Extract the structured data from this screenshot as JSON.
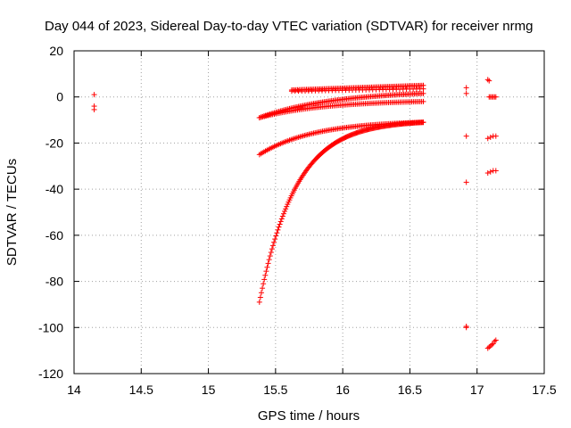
{
  "chart_data": {
    "type": "scatter",
    "title": "Day 044 of 2023, Sidereal Day-to-day VTEC variation (SDTVAR) for receiver nrmg",
    "xlabel": "GPS time / hours",
    "ylabel": "SDTVAR / TECUs",
    "xlim": [
      14,
      17.5
    ],
    "ylim": [
      -120,
      20
    ],
    "x_ticks": [
      14,
      14.5,
      15,
      15.5,
      16,
      16.5,
      17,
      17.5
    ],
    "y_ticks": [
      20,
      0,
      -20,
      -40,
      -60,
      -80,
      -100,
      -120
    ],
    "grid": true,
    "marker": "+",
    "color": "#ff0000",
    "series": [
      {
        "name": "isolated-early",
        "points": [
          [
            14.15,
            1
          ],
          [
            14.15,
            -4
          ],
          [
            14.15,
            -5.5
          ]
        ]
      },
      {
        "name": "upper-band",
        "x_start": 15.62,
        "x_end": 16.6,
        "y_start": 3,
        "y_end": 5,
        "count": 90
      },
      {
        "name": "upper-band-2",
        "x_start": 15.62,
        "x_end": 16.6,
        "y_start": 2.5,
        "y_end": 3.5,
        "count": 40
      },
      {
        "name": "track-a",
        "x_start": 15.38,
        "x_end": 16.6,
        "y_start": -9,
        "y_end": 1.5,
        "shape": 2.2,
        "count": 110
      },
      {
        "name": "track-b",
        "x_start": 15.38,
        "x_end": 16.6,
        "y_start": -9,
        "y_end": -2,
        "shape": 2.5,
        "count": 100
      },
      {
        "name": "track-c",
        "x_start": 15.38,
        "x_end": 16.6,
        "y_start": -25,
        "y_end": -11,
        "shape": 3.0,
        "count": 110
      },
      {
        "name": "track-d",
        "x_start": 15.38,
        "x_end": 16.6,
        "y_start": -89,
        "y_end": -11,
        "shape": 4.5,
        "count": 170
      },
      {
        "name": "late-scatter",
        "points": [
          [
            16.92,
            4
          ],
          [
            16.92,
            1.5
          ],
          [
            16.92,
            -17
          ],
          [
            16.92,
            -37
          ],
          [
            16.92,
            -99.5
          ],
          [
            16.92,
            -100
          ],
          [
            17.08,
            7.5
          ],
          [
            17.09,
            7
          ],
          [
            17.09,
            0
          ],
          [
            17.1,
            0
          ],
          [
            17.11,
            0
          ],
          [
            17.12,
            0
          ],
          [
            17.13,
            0
          ],
          [
            17.14,
            0
          ],
          [
            17.08,
            -18
          ],
          [
            17.1,
            -17.5
          ],
          [
            17.12,
            -17
          ],
          [
            17.14,
            -17
          ],
          [
            17.08,
            -33
          ],
          [
            17.1,
            -32.5
          ],
          [
            17.12,
            -32
          ],
          [
            17.14,
            -32
          ],
          [
            17.08,
            -109
          ],
          [
            17.09,
            -108.5
          ],
          [
            17.1,
            -108
          ],
          [
            17.11,
            -107.5
          ],
          [
            17.12,
            -107
          ],
          [
            17.13,
            -106
          ],
          [
            17.14,
            -105.5
          ]
        ]
      }
    ]
  }
}
